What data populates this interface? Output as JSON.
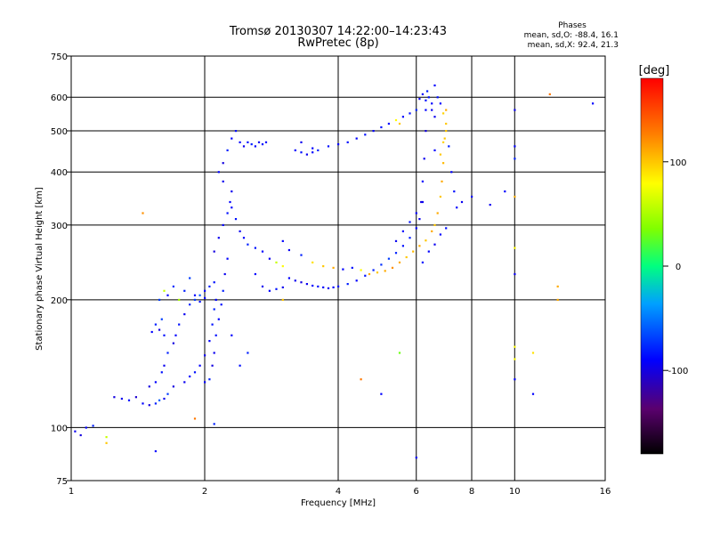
{
  "chart_data": {
    "type": "scatter",
    "title": "Tromsø 20130307 14:22:00–14:23:43",
    "subtitle": "RwPretec (8p)",
    "xlabel": "Frequency [MHz]",
    "ylabel": "Stationary phase Virtual Height [km]",
    "xscale": "log",
    "yscale": "log",
    "xlim": [
      1,
      16
    ],
    "ylim": [
      75,
      750
    ],
    "xticks": [
      1,
      2,
      4,
      6,
      8,
      10,
      16
    ],
    "yticks": [
      75,
      100,
      200,
      300,
      400,
      500,
      600,
      750
    ],
    "grid": true,
    "phase_stats": {
      "header": "Phases",
      "line_o": "mean, sd,O: -88.4, 16.1",
      "line_x": "mean, sd,X:  92.4, 21.3"
    },
    "colorbar": {
      "label": "[deg]",
      "min": -180,
      "max": 180,
      "ticks": [
        100,
        0,
        -100
      ],
      "colormap": "rainbow"
    },
    "series": [
      {
        "points": [
          [
            1.02,
            98,
            -95
          ],
          [
            1.05,
            96,
            -100
          ],
          [
            1.08,
            100,
            -90
          ],
          [
            1.12,
            101,
            -80
          ],
          [
            1.2,
            95,
            60
          ],
          [
            1.25,
            118,
            -100
          ],
          [
            1.3,
            117,
            -95
          ],
          [
            1.35,
            116,
            -85
          ],
          [
            1.4,
            118,
            -105
          ],
          [
            1.45,
            114,
            -90
          ],
          [
            1.5,
            113,
            -100
          ],
          [
            1.55,
            114,
            -80
          ],
          [
            1.58,
            116,
            -60
          ],
          [
            1.62,
            117,
            -95
          ],
          [
            1.65,
            120,
            -70
          ],
          [
            1.5,
            125,
            -100
          ],
          [
            1.55,
            128,
            -90
          ],
          [
            1.6,
            135,
            -85
          ],
          [
            1.62,
            140,
            -95
          ],
          [
            1.65,
            150,
            -80
          ],
          [
            1.7,
            158,
            -100
          ],
          [
            1.72,
            165,
            -90
          ],
          [
            1.75,
            175,
            -85
          ],
          [
            1.8,
            185,
            -95
          ],
          [
            1.85,
            195,
            -80
          ],
          [
            1.9,
            200,
            -70
          ],
          [
            1.95,
            205,
            -60
          ],
          [
            2.0,
            210,
            -90
          ],
          [
            2.05,
            215,
            -80
          ],
          [
            2.1,
            220,
            -85
          ],
          [
            1.52,
            168,
            -90
          ],
          [
            1.55,
            175,
            -80
          ],
          [
            1.58,
            170,
            -100
          ],
          [
            1.6,
            180,
            -70
          ],
          [
            1.62,
            165,
            -85
          ],
          [
            1.58,
            200,
            -70
          ],
          [
            1.62,
            210,
            60
          ],
          [
            1.65,
            205,
            -90
          ],
          [
            1.7,
            215,
            -75
          ],
          [
            1.75,
            200,
            50
          ],
          [
            1.8,
            210,
            -80
          ],
          [
            1.85,
            225,
            -70
          ],
          [
            1.9,
            205,
            -90
          ],
          [
            1.95,
            198,
            -85
          ],
          [
            2.0,
            202,
            -90
          ],
          [
            1.7,
            125,
            -100
          ],
          [
            1.8,
            128,
            -95
          ],
          [
            1.85,
            132,
            -90
          ],
          [
            1.9,
            135,
            -85
          ],
          [
            1.95,
            140,
            -90
          ],
          [
            2.0,
            148,
            -95
          ],
          [
            2.05,
            160,
            -90
          ],
          [
            2.08,
            175,
            -85
          ],
          [
            2.1,
            190,
            -80
          ],
          [
            2.12,
            200,
            -90
          ],
          [
            2.0,
            128,
            -90
          ],
          [
            2.05,
            130,
            -80
          ],
          [
            2.08,
            140,
            -100
          ],
          [
            2.1,
            150,
            -95
          ],
          [
            2.12,
            165,
            -85
          ],
          [
            2.15,
            180,
            -90
          ],
          [
            2.18,
            195,
            -85
          ],
          [
            2.2,
            210,
            -80
          ],
          [
            2.22,
            230,
            -95
          ],
          [
            2.25,
            250,
            -90
          ],
          [
            2.1,
            260,
            -100
          ],
          [
            2.15,
            280,
            -95
          ],
          [
            2.2,
            300,
            -90
          ],
          [
            2.25,
            320,
            -85
          ],
          [
            2.28,
            340,
            -90
          ],
          [
            2.3,
            360,
            -95
          ],
          [
            2.15,
            400,
            -90
          ],
          [
            2.2,
            420,
            -100
          ],
          [
            2.25,
            450,
            -80
          ],
          [
            2.3,
            480,
            -90
          ],
          [
            2.35,
            500,
            -85
          ],
          [
            2.4,
            470,
            -90
          ],
          [
            2.45,
            460,
            -95
          ],
          [
            2.5,
            470,
            -85
          ],
          [
            2.55,
            465,
            -80
          ],
          [
            2.6,
            460,
            -90
          ],
          [
            2.65,
            470,
            -95
          ],
          [
            2.7,
            465,
            -85
          ],
          [
            2.75,
            470,
            -90
          ],
          [
            2.2,
            380,
            -95
          ],
          [
            2.3,
            330,
            -90
          ],
          [
            2.35,
            310,
            -85
          ],
          [
            2.4,
            290,
            -95
          ],
          [
            2.45,
            280,
            -90
          ],
          [
            2.5,
            270,
            -80
          ],
          [
            2.6,
            265,
            -85
          ],
          [
            2.7,
            260,
            -90
          ],
          [
            2.8,
            250,
            -95
          ],
          [
            2.9,
            245,
            60
          ],
          [
            3.0,
            240,
            80
          ],
          [
            3.1,
            225,
            -90
          ],
          [
            3.2,
            222,
            -95
          ],
          [
            3.3,
            220,
            -100
          ],
          [
            3.4,
            218,
            -95
          ],
          [
            3.5,
            216,
            -90
          ],
          [
            3.6,
            215,
            -85
          ],
          [
            3.7,
            214,
            -90
          ],
          [
            3.8,
            213,
            -95
          ],
          [
            3.9,
            214,
            -90
          ],
          [
            4.0,
            215,
            -85
          ],
          [
            4.2,
            218,
            -80
          ],
          [
            4.4,
            222,
            -90
          ],
          [
            4.6,
            228,
            -85
          ],
          [
            4.8,
            235,
            -80
          ],
          [
            5.0,
            242,
            -75
          ],
          [
            5.2,
            250,
            -70
          ],
          [
            5.4,
            258,
            -80
          ],
          [
            5.6,
            268,
            -85
          ],
          [
            5.8,
            280,
            -80
          ],
          [
            6.0,
            295,
            -90
          ],
          [
            6.1,
            310,
            -95
          ],
          [
            6.15,
            340,
            -100
          ],
          [
            6.2,
            380,
            -90
          ],
          [
            6.25,
            430,
            -95
          ],
          [
            6.3,
            500,
            -100
          ],
          [
            6.3,
            560,
            -90
          ],
          [
            6.35,
            620,
            -80
          ],
          [
            6.4,
            600,
            -85
          ],
          [
            6.5,
            580,
            -90
          ],
          [
            6.6,
            540,
            -95
          ],
          [
            3.2,
            450,
            -90
          ],
          [
            3.3,
            445,
            -85
          ],
          [
            3.4,
            440,
            -95
          ],
          [
            3.5,
            445,
            -90
          ],
          [
            3.6,
            450,
            -80
          ],
          [
            3.8,
            460,
            -85
          ],
          [
            4.0,
            465,
            -90
          ],
          [
            4.2,
            470,
            -85
          ],
          [
            4.4,
            480,
            -90
          ],
          [
            4.6,
            490,
            -85
          ],
          [
            4.8,
            500,
            -90
          ],
          [
            5.0,
            510,
            -85
          ],
          [
            5.2,
            520,
            -90
          ],
          [
            5.4,
            530,
            80
          ],
          [
            5.5,
            520,
            100
          ],
          [
            5.6,
            540,
            -90
          ],
          [
            5.8,
            550,
            -85
          ],
          [
            6.0,
            560,
            -80
          ],
          [
            3.3,
            470,
            -95
          ],
          [
            3.5,
            455,
            -90
          ],
          [
            3.0,
            275,
            -90
          ],
          [
            3.1,
            262,
            -95
          ],
          [
            3.3,
            255,
            -80
          ],
          [
            3.5,
            245,
            90
          ],
          [
            3.7,
            240,
            100
          ],
          [
            3.9,
            238,
            110
          ],
          [
            4.1,
            236,
            -90
          ],
          [
            4.3,
            238,
            -85
          ],
          [
            4.5,
            235,
            80
          ],
          [
            4.7,
            230,
            110
          ],
          [
            4.9,
            232,
            100
          ],
          [
            5.1,
            234,
            110
          ],
          [
            5.3,
            238,
            120
          ],
          [
            5.5,
            245,
            110
          ],
          [
            5.7,
            252,
            100
          ],
          [
            5.9,
            260,
            105
          ],
          [
            6.1,
            268,
            110
          ],
          [
            6.3,
            276,
            100
          ],
          [
            6.5,
            290,
            110
          ],
          [
            6.6,
            300,
            100
          ],
          [
            6.7,
            320,
            110
          ],
          [
            6.8,
            350,
            100
          ],
          [
            6.85,
            380,
            110
          ],
          [
            6.9,
            420,
            105
          ],
          [
            6.95,
            480,
            100
          ],
          [
            7.0,
            560,
            110
          ],
          [
            7.0,
            520,
            100
          ],
          [
            6.9,
            470,
            95
          ],
          [
            6.8,
            440,
            100
          ],
          [
            7.1,
            460,
            -80
          ],
          [
            7.2,
            400,
            -90
          ],
          [
            7.3,
            360,
            -85
          ],
          [
            7.4,
            330,
            -90
          ],
          [
            7.6,
            340,
            -95
          ],
          [
            8.0,
            350,
            -90
          ],
          [
            5.4,
            275,
            -95
          ],
          [
            5.6,
            290,
            -90
          ],
          [
            5.8,
            305,
            -85
          ],
          [
            6.0,
            320,
            -90
          ],
          [
            6.2,
            340,
            -95
          ],
          [
            6.1,
            595,
            -95
          ],
          [
            6.2,
            610,
            -90
          ],
          [
            6.3,
            590,
            -85
          ],
          [
            6.5,
            560,
            -95
          ],
          [
            6.6,
            640,
            -90
          ],
          [
            6.7,
            600,
            -85
          ],
          [
            6.8,
            580,
            -90
          ],
          [
            6.9,
            550,
            95
          ],
          [
            7.0,
            500,
            100
          ],
          [
            6.6,
            450,
            -90
          ],
          [
            8.8,
            335,
            -95
          ],
          [
            9.5,
            360,
            -90
          ],
          [
            10.0,
            560,
            -95
          ],
          [
            10.0,
            460,
            -90
          ],
          [
            10.0,
            430,
            -80
          ],
          [
            10.0,
            265,
            80
          ],
          [
            10.0,
            230,
            -95
          ],
          [
            10.0,
            155,
            80
          ],
          [
            10.0,
            145,
            80
          ],
          [
            10.0,
            130,
            -90
          ],
          [
            10.0,
            350,
            110
          ],
          [
            11.0,
            150,
            90
          ],
          [
            11.0,
            120,
            -90
          ],
          [
            12.0,
            610,
            130
          ],
          [
            12.5,
            215,
            110
          ],
          [
            12.5,
            200,
            110
          ],
          [
            15.0,
            580,
            -90
          ],
          [
            2.1,
            102,
            -80
          ],
          [
            1.9,
            105,
            130
          ],
          [
            1.55,
            88,
            -90
          ],
          [
            1.2,
            92,
            100
          ],
          [
            1.45,
            320,
            120
          ],
          [
            2.3,
            165,
            -90
          ],
          [
            2.5,
            150,
            -80
          ],
          [
            2.4,
            140,
            -85
          ],
          [
            3.0,
            200,
            100
          ],
          [
            4.5,
            130,
            130
          ],
          [
            5.0,
            120,
            -90
          ],
          [
            5.5,
            150,
            30
          ],
          [
            6.0,
            85,
            -90
          ],
          [
            6.2,
            245,
            -85
          ],
          [
            6.4,
            260,
            -90
          ],
          [
            6.6,
            270,
            -95
          ],
          [
            6.8,
            285,
            -90
          ],
          [
            7.0,
            295,
            -85
          ],
          [
            2.6,
            230,
            -90
          ],
          [
            2.7,
            215,
            -95
          ],
          [
            2.8,
            210,
            -90
          ],
          [
            2.9,
            212,
            -85
          ],
          [
            3.0,
            214,
            -95
          ]
        ]
      }
    ]
  }
}
